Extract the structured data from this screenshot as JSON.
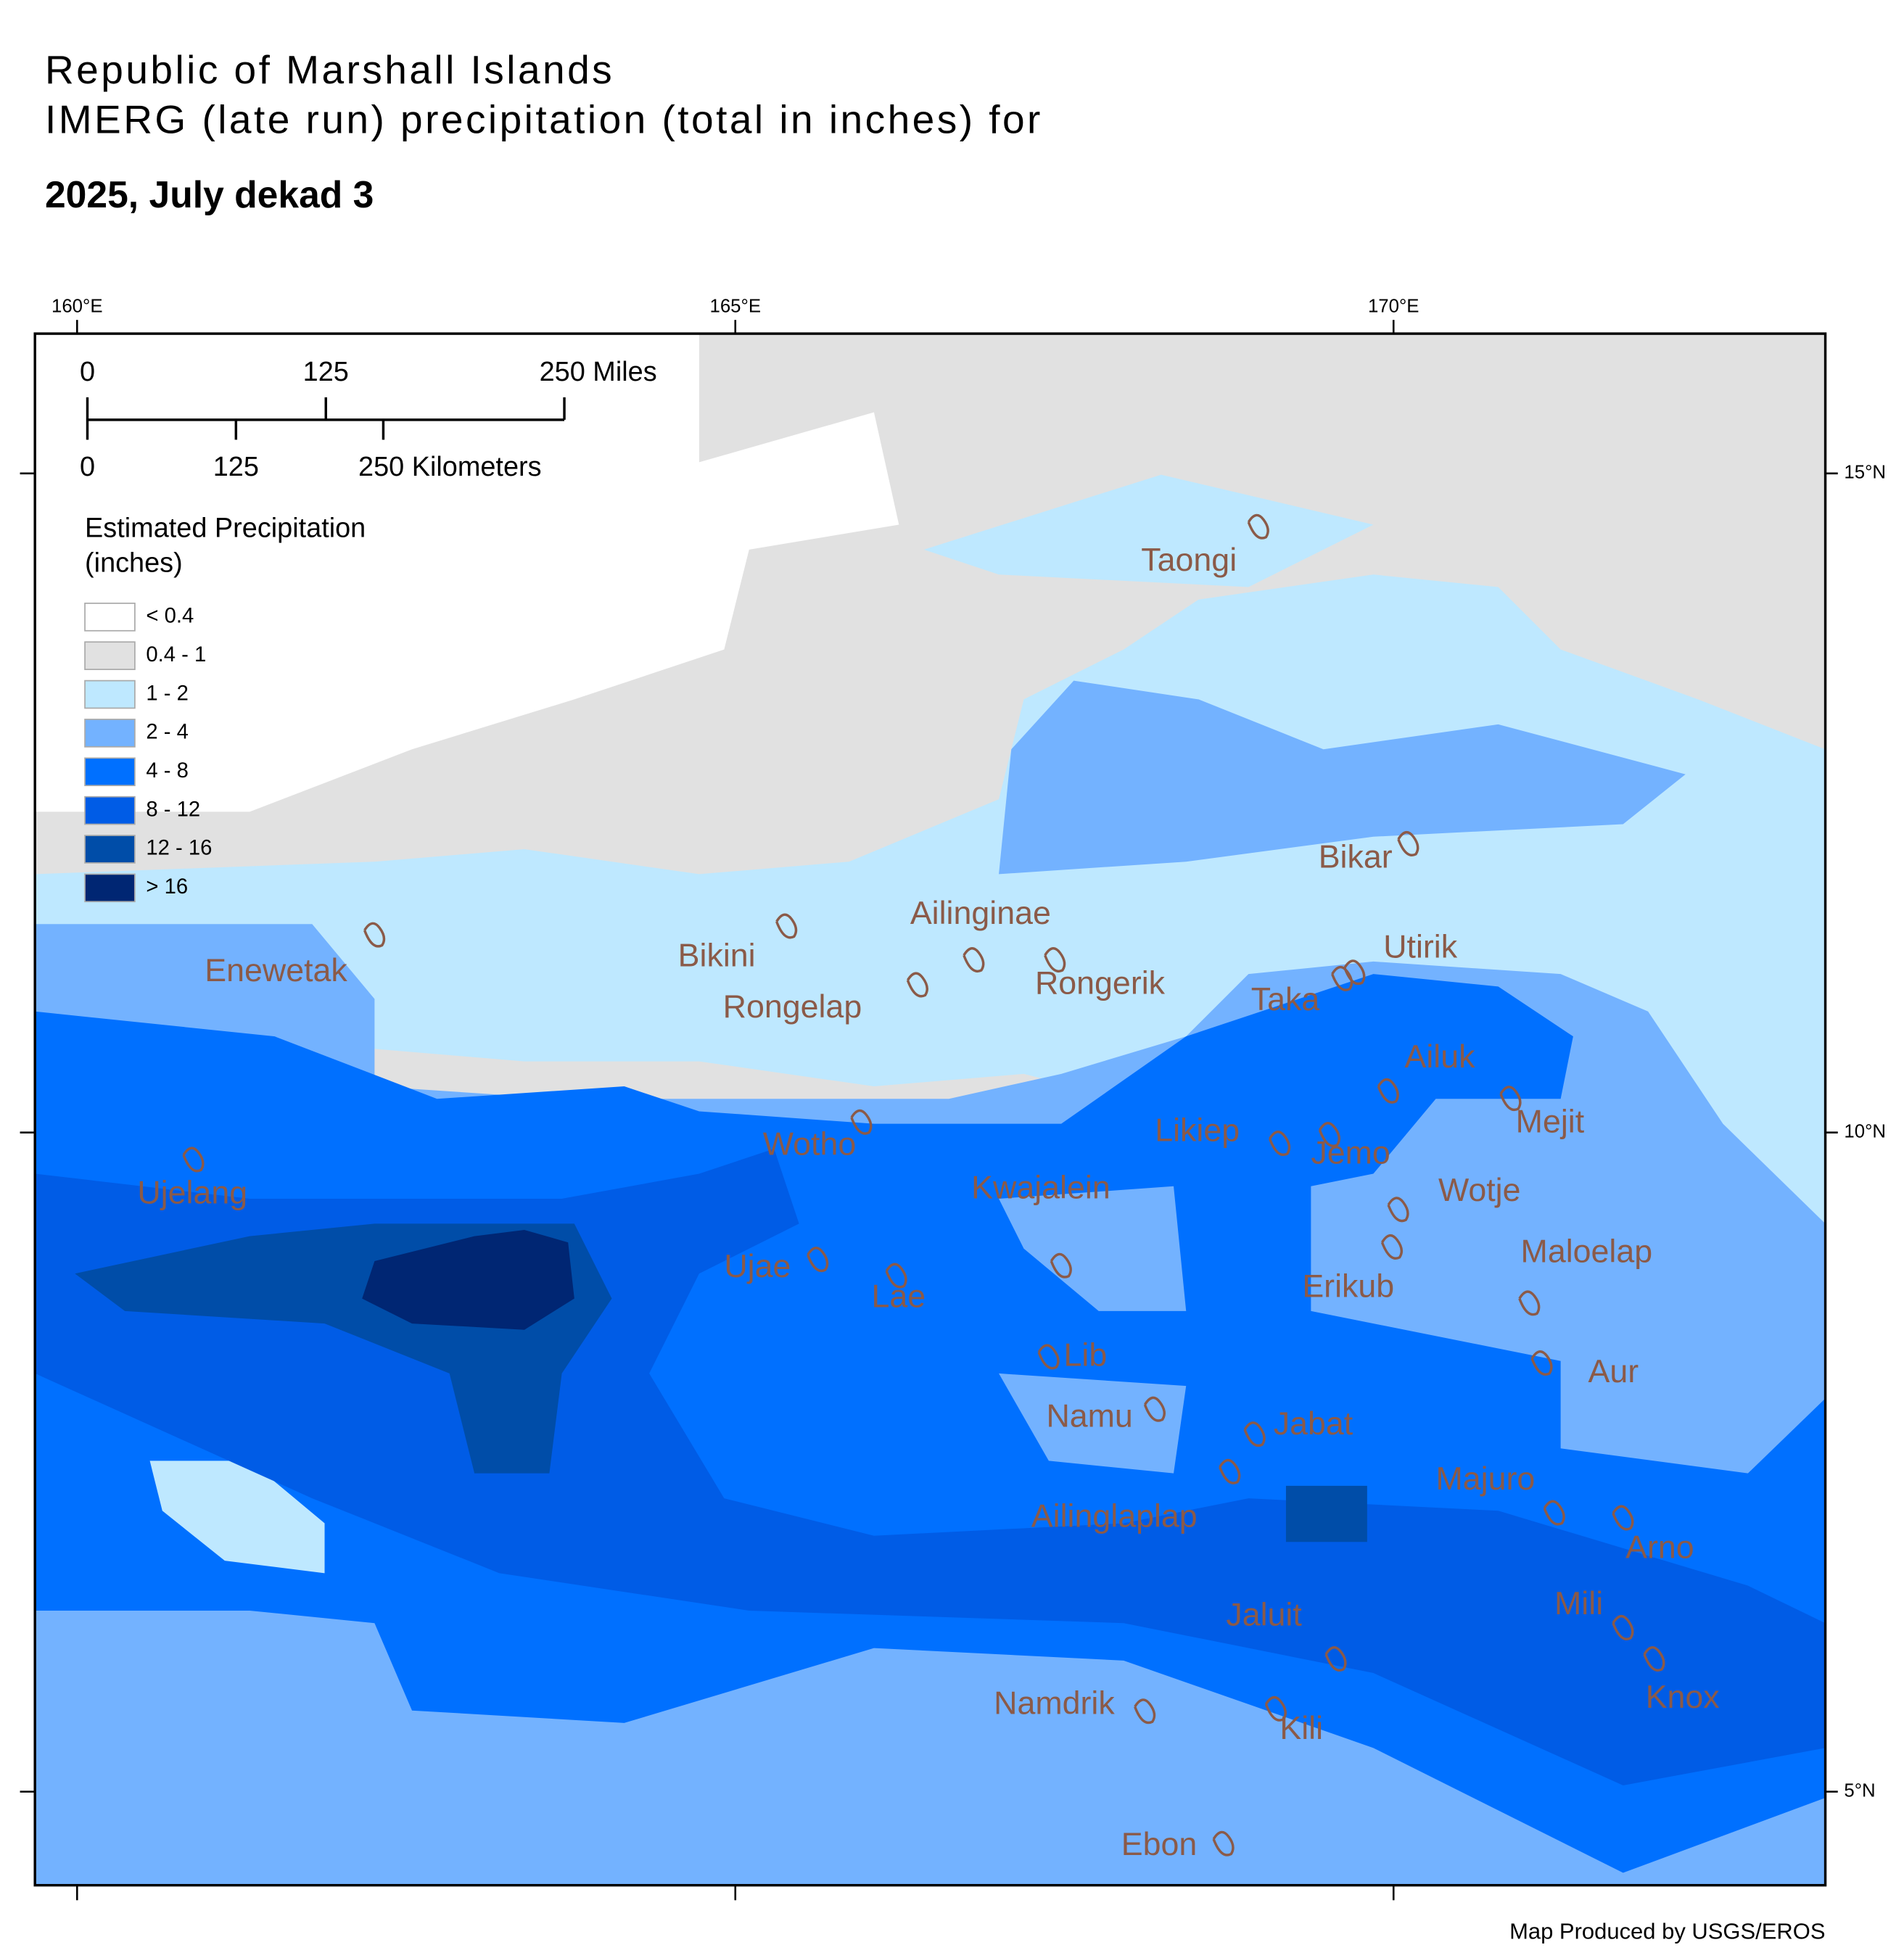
{
  "title": [
    "Republic of Marshall Islands",
    "IMERG (late run) precipitation (total in inches) for"
  ],
  "subtitle": "2025, July dekad 3",
  "map": {
    "lonlim": [
      159.68,
      173.28
    ],
    "latlim": [
      16.06,
      4.29
    ],
    "lon_ticks": [
      {
        "value": 160,
        "label": "160°E"
      },
      {
        "value": 165,
        "label": "165°E"
      },
      {
        "value": 170,
        "label": "170°E"
      }
    ],
    "lat_ticks": [
      {
        "value": 15,
        "label": "15°N"
      },
      {
        "value": 10,
        "label": "10°N"
      },
      {
        "value": 5,
        "label": "5°N"
      }
    ]
  },
  "scale_bar": {
    "miles_labels": [
      "0",
      "125",
      "250 Miles"
    ],
    "km_labels": [
      "0",
      "125",
      "250 Kilometers"
    ]
  },
  "legend": {
    "title": [
      "Estimated Precipitation",
      "(inches)"
    ],
    "items": [
      {
        "label": "< 0.4",
        "color": "#ffffff"
      },
      {
        "label": "0.4 - 1",
        "color": "#e1e1e1"
      },
      {
        "label": "1 - 2",
        "color": "#bee8ff"
      },
      {
        "label": "2 - 4",
        "color": "#73b2ff"
      },
      {
        "label": "4 - 8",
        "color": "#0070ff"
      },
      {
        "label": "8 - 12",
        "color": "#005ce6"
      },
      {
        "label": "12 - 16",
        "color": "#004da8"
      },
      {
        "label": "> 16",
        "color": "#002673"
      }
    ]
  },
  "places": [
    "Taongi",
    "Bikar",
    "Utirik",
    "Ailinginae",
    "Bikini",
    "Enewetak",
    "Rongelap",
    "Rongerik",
    "Taka",
    "Ailuk",
    "Mejit",
    "Likiep",
    "Jemo",
    "Wotho",
    "Kwajalein",
    "Wotje",
    "Ujelang",
    "Maloelap",
    "Ujae",
    "Erikub",
    "Lae",
    "Lib",
    "Aur",
    "Namu",
    "Jabat",
    "Majuro",
    "Ailinglaplap",
    "Arno",
    "Mili",
    "Jaluit",
    "Knox",
    "Namdrik",
    "Kili",
    "Ebon"
  ],
  "credit": "Map Produced by USGS/EROS"
}
